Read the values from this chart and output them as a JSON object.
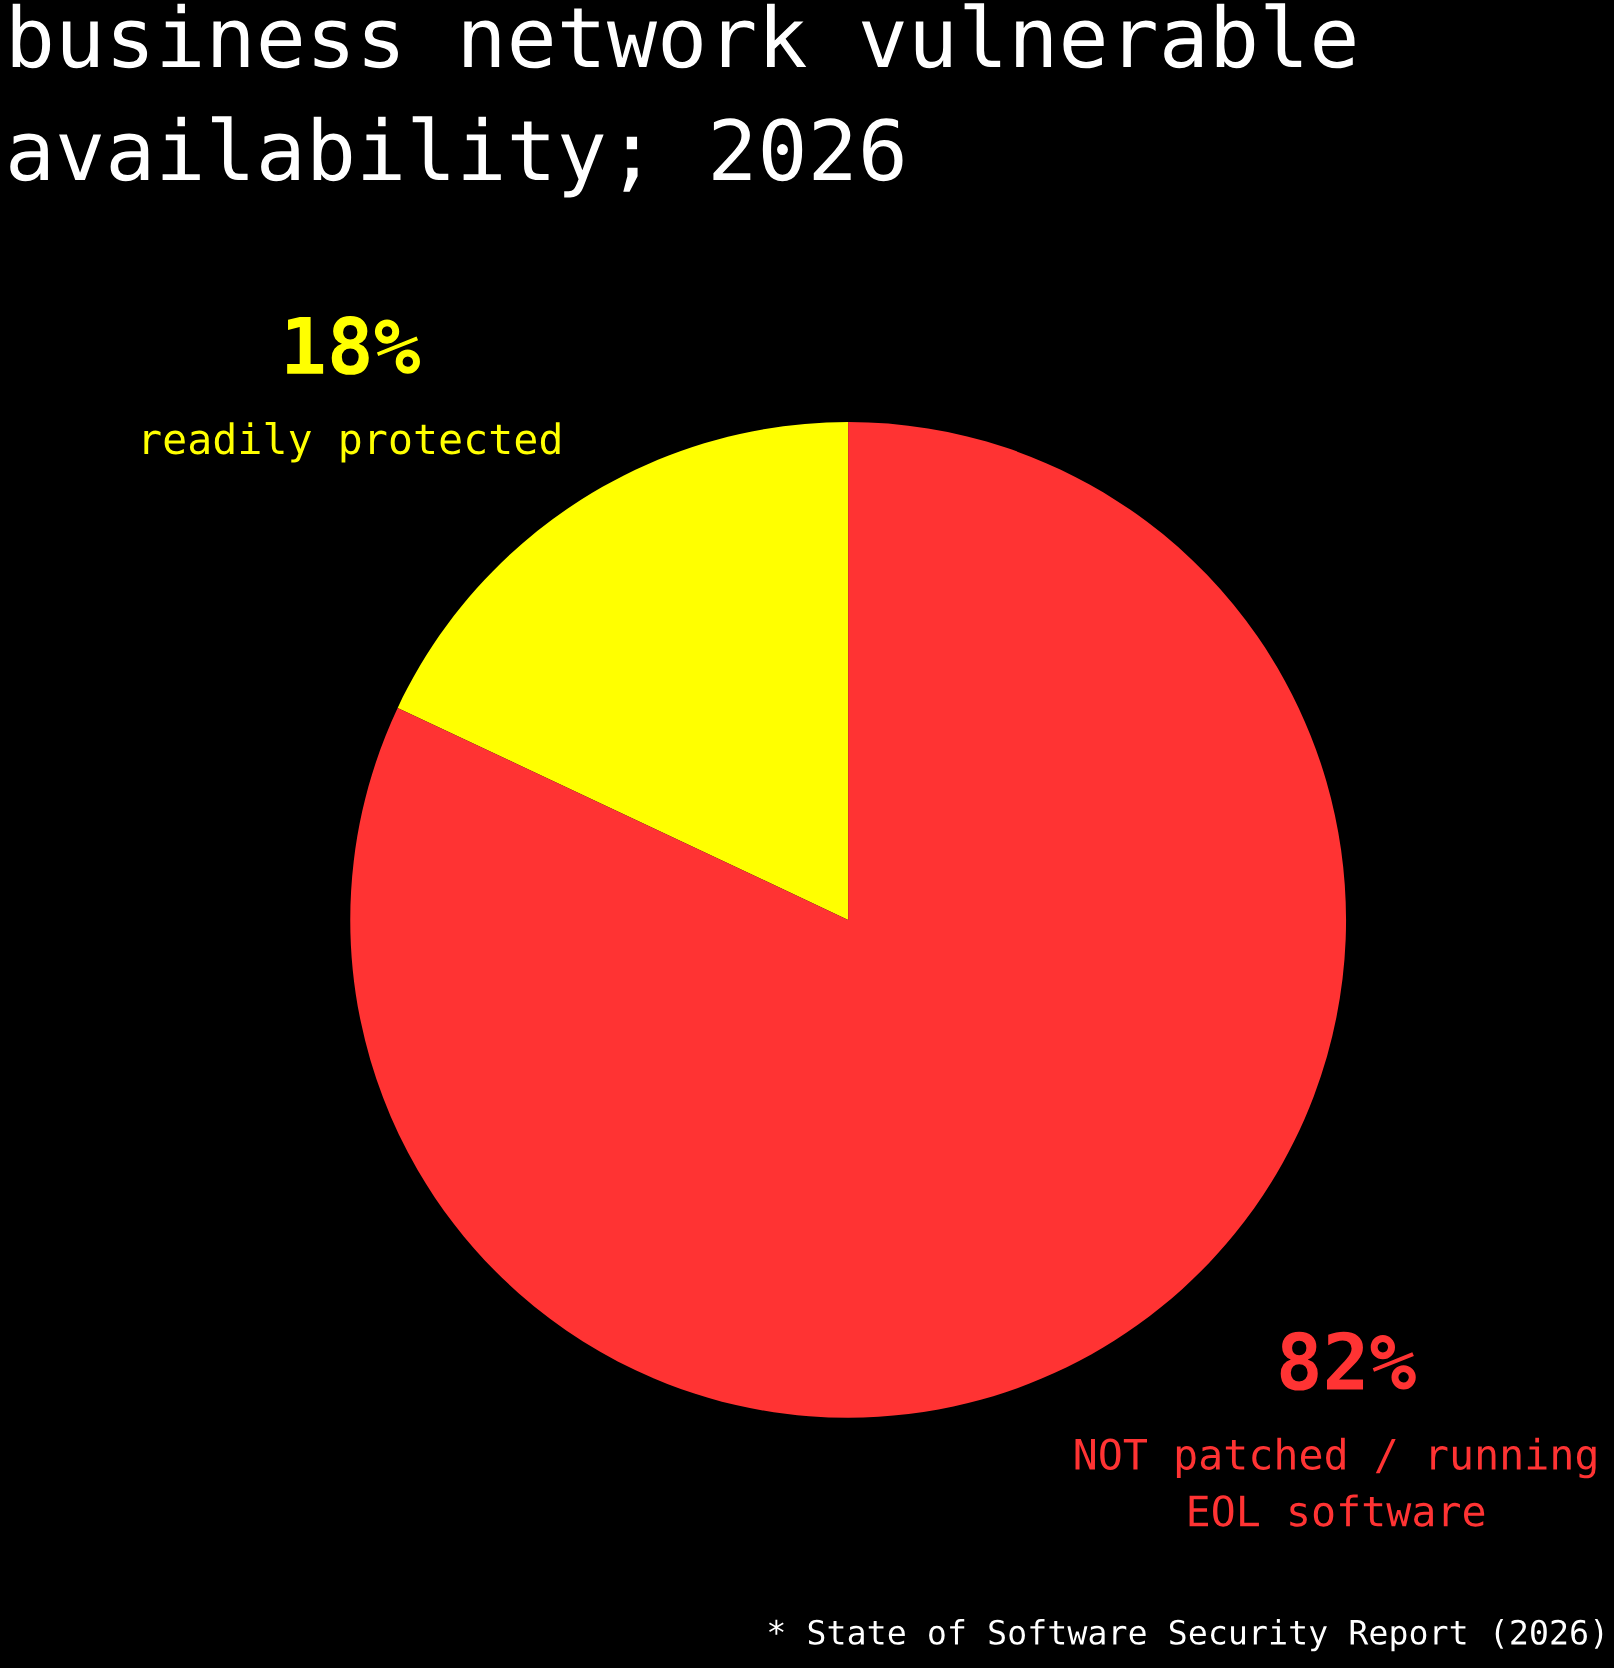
{
  "chart_data": {
    "type": "pie",
    "title": "business network vulnerable\navailability; 2026",
    "categories": [
      "readily protected",
      "NOT patched / running\nEOL software"
    ],
    "values": [
      18,
      82
    ],
    "value_labels": [
      "18%",
      "82%"
    ],
    "colors": [
      "#ffff00",
      "#ff3333"
    ],
    "annotations": [
      "* State of Software Security Report (2026)"
    ]
  }
}
